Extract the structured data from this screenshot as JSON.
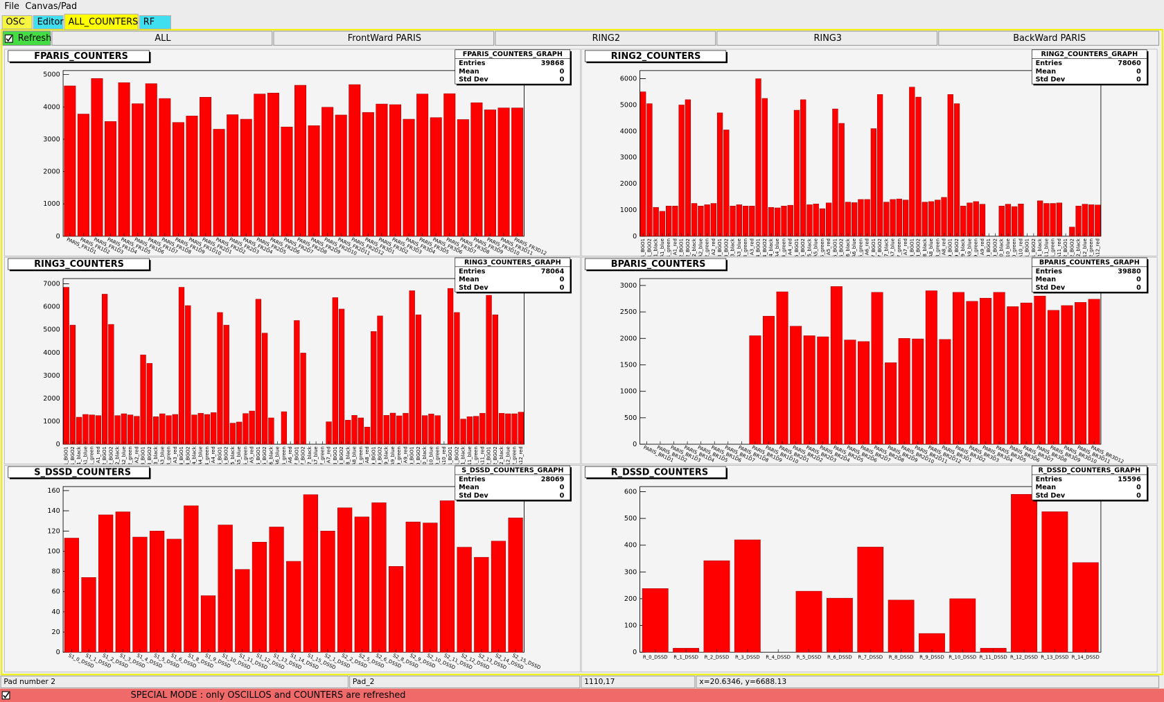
{
  "menu": [
    "File",
    "Canvas/Pad"
  ],
  "tabs": [
    "OSC",
    "Editor",
    "ALL_COUNTERS",
    "RF"
  ],
  "refresh": "Refresh",
  "buttons": [
    "ALL",
    "FrontWard PARIS",
    "RING2",
    "RING3",
    "BackWard PARIS"
  ],
  "chart_data": [
    {
      "type": "bar",
      "title": "FPARIS_COUNTERS",
      "color": "#ff0000",
      "stats": {
        "title": "FPARIS_COUNTERS_GRAPH",
        "rows": [
          {
            "label": "Entries",
            "value": 39868
          },
          {
            "label": "Mean",
            "value": 0
          },
          {
            "label": "Std Dev",
            "value": 0
          }
        ]
      },
      "categories": [
        "PARIS_FR1D1",
        "PARIS_FR1D2",
        "PARIS_FR1D3",
        "PARIS_FR1D4",
        "PARIS_FR1D5",
        "PARIS_FR1D6",
        "PARIS_FR1D7",
        "PARIS_FR1D8",
        "PARIS_FR1D9",
        "PARIS_FR1D10",
        "PARIS_FR2D1",
        "PARIS_FR2D2",
        "PARIS_FR2D3",
        "PARIS_FR2D4",
        "PARIS_FR2D5",
        "PARIS_FR2D6",
        "PARIS_FR2D7",
        "PARIS_FR2D8",
        "PARIS_FR2D9",
        "PARIS_FR2D10",
        "PARIS_FR2D11",
        "PARIS_FR2D12",
        "PARIS_FR3D1",
        "PARIS_FR3D2",
        "PARIS_FR3D3",
        "PARIS_FR3D4",
        "PARIS_FR3D5",
        "PARIS_FR3D6",
        "PARIS_FR3D7",
        "PARIS_FR3D8",
        "PARIS_FR3D9",
        "PARIS_FR3D10",
        "PARIS_FR3D11",
        "PARIS_FR3D12"
      ],
      "values": [
        4650,
        3780,
        4880,
        3550,
        4750,
        4100,
        4720,
        4260,
        3520,
        3720,
        4300,
        3310,
        3760,
        3620,
        4400,
        4430,
        3380,
        4670,
        3420,
        3990,
        3750,
        4690,
        3830,
        4090,
        4070,
        3620,
        4400,
        3670,
        4410,
        3610,
        4130,
        3910,
        3970,
        3970
      ],
      "ylim": [
        0,
        5124
      ],
      "yticks": [
        0,
        1000,
        2000,
        3000,
        4000,
        5000
      ]
    },
    {
      "type": "bar",
      "title": "RING2_COUNTERS",
      "color": "#ff0000",
      "stats": {
        "title": "RING2_COUNTERS_GRAPH",
        "rows": [
          {
            "label": "Entries",
            "value": 78060
          },
          {
            "label": "Mean",
            "value": 0
          },
          {
            "label": "Std Dev",
            "value": 0
          }
        ]
      },
      "categories": [
        "1_BGO1",
        "1_BGO2",
        "A1_black",
        "A1_blue",
        "A1_green",
        "A1_red",
        "2_BGO1",
        "2_BGO2",
        "A2_black",
        "A2_blue",
        "A2_green",
        "A2_red",
        "3_BGO1",
        "3_BGO2",
        "A3_black",
        "A3_blue",
        "A3_green",
        "A3_red",
        "4_BGO1",
        "4_BGO2",
        "A4_black",
        "A4_blue",
        "A4_green",
        "A4_red",
        "5_BGO1",
        "5_BGO2",
        "A5_black",
        "A5_blue",
        "A5_green",
        "A5_red",
        "6_BGO1",
        "6_BGO2",
        "A6_black",
        "A6_blue",
        "A6_green",
        "A6_red",
        "7_BGO1",
        "7_BGO2",
        "A7_black",
        "A7_blue",
        "A7_green",
        "A7_red",
        "8_BGO1",
        "8_BGO2",
        "A8_black",
        "A8_blue",
        "A8_green",
        "A8_red",
        "9_BGO1",
        "9_BGO2",
        "A9_black",
        "A9_blue",
        "A9_green",
        "A9_red",
        "10_BGO1",
        "10_BGO2",
        "A10_black",
        "A10_blue",
        "A10_green",
        "A10_red",
        "11_BGO1",
        "11_BGO2",
        "A11_black",
        "A11_blue",
        "A11_green",
        "A11_red",
        "12_BGO1",
        "12_BGO2",
        "A12_black",
        "A12_blue",
        "A12_green",
        "A12_red"
      ],
      "values": [
        5500,
        5050,
        1100,
        950,
        1150,
        1150,
        5000,
        5200,
        1250,
        1150,
        1200,
        1250,
        4700,
        4050,
        1150,
        1200,
        1150,
        1150,
        6000,
        5250,
        1100,
        1080,
        1150,
        1180,
        4800,
        5200,
        1200,
        1230,
        1050,
        1270,
        4850,
        4300,
        1300,
        1280,
        1400,
        1400,
        4100,
        5400,
        1300,
        1400,
        1420,
        1380,
        5680,
        5300,
        1300,
        1320,
        1380,
        1480,
        5400,
        5050,
        1150,
        1270,
        1320,
        1220,
        0,
        0,
        1150,
        1220,
        1130,
        1230,
        0,
        0,
        1350,
        1250,
        1250,
        1270,
        0,
        350,
        1150,
        1220,
        1200,
        1190
      ],
      "ylim": [
        0,
        6310
      ],
      "yticks": [
        0,
        1000,
        2000,
        3000,
        4000,
        5000,
        6000
      ]
    },
    {
      "type": "bar",
      "title": "RING3_COUNTERS",
      "color": "#ff0000",
      "stats": {
        "title": "RING3_COUNTERS_GRAPH",
        "rows": [
          {
            "label": "Entries",
            "value": 78064
          },
          {
            "label": "Mean",
            "value": 0
          },
          {
            "label": "Std Dev",
            "value": 0
          }
        ]
      },
      "categories": [
        "1_BGO1",
        "1_BGO2",
        "A1_black",
        "A1_blue",
        "A1_green",
        "A1_red",
        "2_BGO1",
        "2_BGO2",
        "A2_black",
        "A2_blue",
        "A2_green",
        "A2_red",
        "3_BGO1",
        "3_BGO2",
        "A3_black",
        "A3_blue",
        "A3_green",
        "A3_red",
        "4_BGO1",
        "4_BGO2",
        "A4_black",
        "A4_blue",
        "A4_green",
        "A4_red",
        "5_BGO1",
        "5_BGO2",
        "A5_black",
        "A5_blue",
        "A5_green",
        "A5_red",
        "6_BGO1",
        "6_BGO2",
        "A6_black",
        "A6_blue",
        "A6_green",
        "A6_red",
        "7_BGO1",
        "7_BGO2",
        "A7_black",
        "A7_blue",
        "A7_green",
        "A7_red",
        "8_BGO1",
        "8_BGO2",
        "A8_black",
        "A8_blue",
        "A8_green",
        "A8_red",
        "9_BGO1",
        "9_BGO2",
        "A9_black",
        "A9_blue",
        "A9_green",
        "A9_red",
        "10_BGO1",
        "10_BGO2",
        "A10_black",
        "A10_blue",
        "A10_green",
        "A10_red",
        "11_BGO1",
        "11_BGO2",
        "A11_black",
        "A11_blue",
        "A11_green",
        "A11_red",
        "12_BGO1",
        "12_BGO2",
        "A12_black",
        "A12_blue",
        "A12_green",
        "A12_red"
      ],
      "values": [
        6850,
        5200,
        1180,
        1300,
        1280,
        1250,
        6550,
        5230,
        1250,
        1330,
        1280,
        1220,
        3900,
        3530,
        1200,
        1330,
        1250,
        1300,
        6850,
        6050,
        1280,
        1350,
        1300,
        1380,
        5750,
        5200,
        920,
        970,
        1340,
        1450,
        6330,
        4850,
        1150,
        0,
        1420,
        0,
        5400,
        3980,
        0,
        0,
        0,
        980,
        6400,
        5900,
        1050,
        1260,
        1150,
        750,
        4920,
        5600,
        1260,
        1360,
        1240,
        1350,
        6700,
        5650,
        1250,
        1320,
        1250,
        0,
        6800,
        5750,
        1100,
        1200,
        1220,
        1350,
        6500,
        5650,
        1350,
        1330,
        1330,
        1400
      ],
      "ylim": [
        0,
        7230
      ],
      "yticks": [
        0,
        1000,
        2000,
        3000,
        4000,
        5000,
        6000,
        7000
      ]
    },
    {
      "type": "bar",
      "title": "BPARIS_COUNTERS",
      "color": "#ff0000",
      "stats": {
        "title": "BPARIS_COUNTERS_GRAPH",
        "rows": [
          {
            "label": "Entries",
            "value": 39880
          },
          {
            "label": "Mean",
            "value": 0
          },
          {
            "label": "Std Dev",
            "value": 0
          }
        ]
      },
      "categories": [
        "PARIS_BR1D1",
        "PARIS_BR1D2",
        "PARIS_BR1D3",
        "PARIS_BR1D4",
        "PARIS_BR1D5",
        "PARIS_BR1D6",
        "PARIS_BR1D7",
        "PARIS_BR1D8",
        "PARIS_BR1D9",
        "PARIS_BR1D10",
        "PARIS_BR2D1",
        "PARIS_BR2D2",
        "PARIS_BR2D3",
        "PARIS_BR2D4",
        "PARIS_BR2D5",
        "PARIS_BR2D6",
        "PARIS_BR2D7",
        "PARIS_BR2D8",
        "PARIS_BR2D9",
        "PARIS_BR2D10",
        "PARIS_BR2D11",
        "PARIS_BR2D12",
        "PARIS_BR3D1",
        "PARIS_BR3D2",
        "PARIS_BR3D3",
        "PARIS_BR3D4",
        "PARIS_BR3D5",
        "PARIS_BR3D6",
        "PARIS_BR3D7",
        "PARIS_BR3D8",
        "PARIS_BR3D9",
        "PARIS_BR3D10",
        "PARIS_BR3D11",
        "PARIS_BR3D12"
      ],
      "values": [
        0,
        0,
        0,
        0,
        0,
        0,
        0,
        0,
        2050,
        2420,
        2880,
        2230,
        2050,
        2030,
        2980,
        1970,
        1940,
        2870,
        1540,
        2000,
        1990,
        2900,
        1980,
        2870,
        2700,
        2760,
        2870,
        2600,
        2670,
        2800,
        2530,
        2620,
        2680,
        2740
      ],
      "ylim": [
        0,
        3130
      ],
      "yticks": [
        0,
        500,
        1000,
        1500,
        2000,
        2500,
        3000
      ]
    },
    {
      "type": "bar",
      "title": "S_DSSD_COUNTERS",
      "color": "#ff0000",
      "stats": {
        "title": "S_DSSD_COUNTERS_GRAPH",
        "rows": [
          {
            "label": "Entries",
            "value": 28069
          },
          {
            "label": "Mean",
            "value": 0
          },
          {
            "label": "Std Dev",
            "value": 0
          }
        ]
      },
      "categories": [
        "S1_0_DSSD",
        "S1_1_DSSD",
        "S1_2_DSSD",
        "S1_3_DSSD",
        "S1_4_DSSD",
        "S1_5_DSSD",
        "S1_6_DSSD",
        "S1_8_DSSD",
        "S1_9_DSSD",
        "S1_10_DSSD",
        "S1_11_DSSD",
        "S1_12_DSSD",
        "S1_13_DSSD",
        "S1_14_DSSD",
        "S1_15_DSSD",
        "S2_1_DSSD",
        "S2_2_DSSD",
        "S2_5_DSSD",
        "S2_6_DSSD",
        "S2_8_DSSD",
        "S2_9_DSSD",
        "S2_10_DSSD",
        "S2_11_DSSD",
        "S2_12_DSSD",
        "S2_13_DSSD",
        "S2_14_DSSD",
        "S2_15_DSSD"
      ],
      "values": [
        113,
        74,
        136,
        139,
        114,
        120,
        112,
        145,
        56,
        126,
        82,
        109,
        124,
        90,
        156,
        120,
        143,
        134,
        148,
        85,
        129,
        128,
        150,
        104,
        94,
        110,
        133
      ],
      "ylim": [
        0,
        164
      ],
      "yticks": [
        0,
        20,
        40,
        60,
        80,
        100,
        120,
        140,
        160
      ]
    },
    {
      "type": "bar",
      "title": "R_DSSD_COUNTERS",
      "color": "#ff0000",
      "stats": {
        "title": "R_DSSD_COUNTERS_GRAPH",
        "rows": [
          {
            "label": "Entries",
            "value": 15596
          },
          {
            "label": "Mean",
            "value": 0
          },
          {
            "label": "Std Dev",
            "value": 0
          }
        ]
      },
      "categories": [
        "R_0_DSSD",
        "R_1_DSSD",
        "R_2_DSSD",
        "R_3_DSSD",
        "R_4_DSSD",
        "R_5_DSSD",
        "R_6_DSSD",
        "R_7_DSSD",
        "R_8_DSSD",
        "R_9_DSSD",
        "R_10_DSSD",
        "R_11_DSSD",
        "R_12_DSSD",
        "R_13_DSSD",
        "R_14_DSSD"
      ],
      "values": [
        238,
        15,
        342,
        420,
        0,
        228,
        202,
        393,
        195,
        70,
        200,
        15,
        590,
        525,
        335
      ],
      "ylim": [
        0,
        619
      ],
      "yticks": [
        0,
        100,
        200,
        300,
        400,
        500,
        600
      ]
    }
  ],
  "status": [
    "Pad number 2",
    "Pad_2",
    "1110,17",
    "x=20.6346, y=6688.13"
  ],
  "special_mode": "SPECIAL MODE : only OSCILLOS and COUNTERS are refreshed"
}
